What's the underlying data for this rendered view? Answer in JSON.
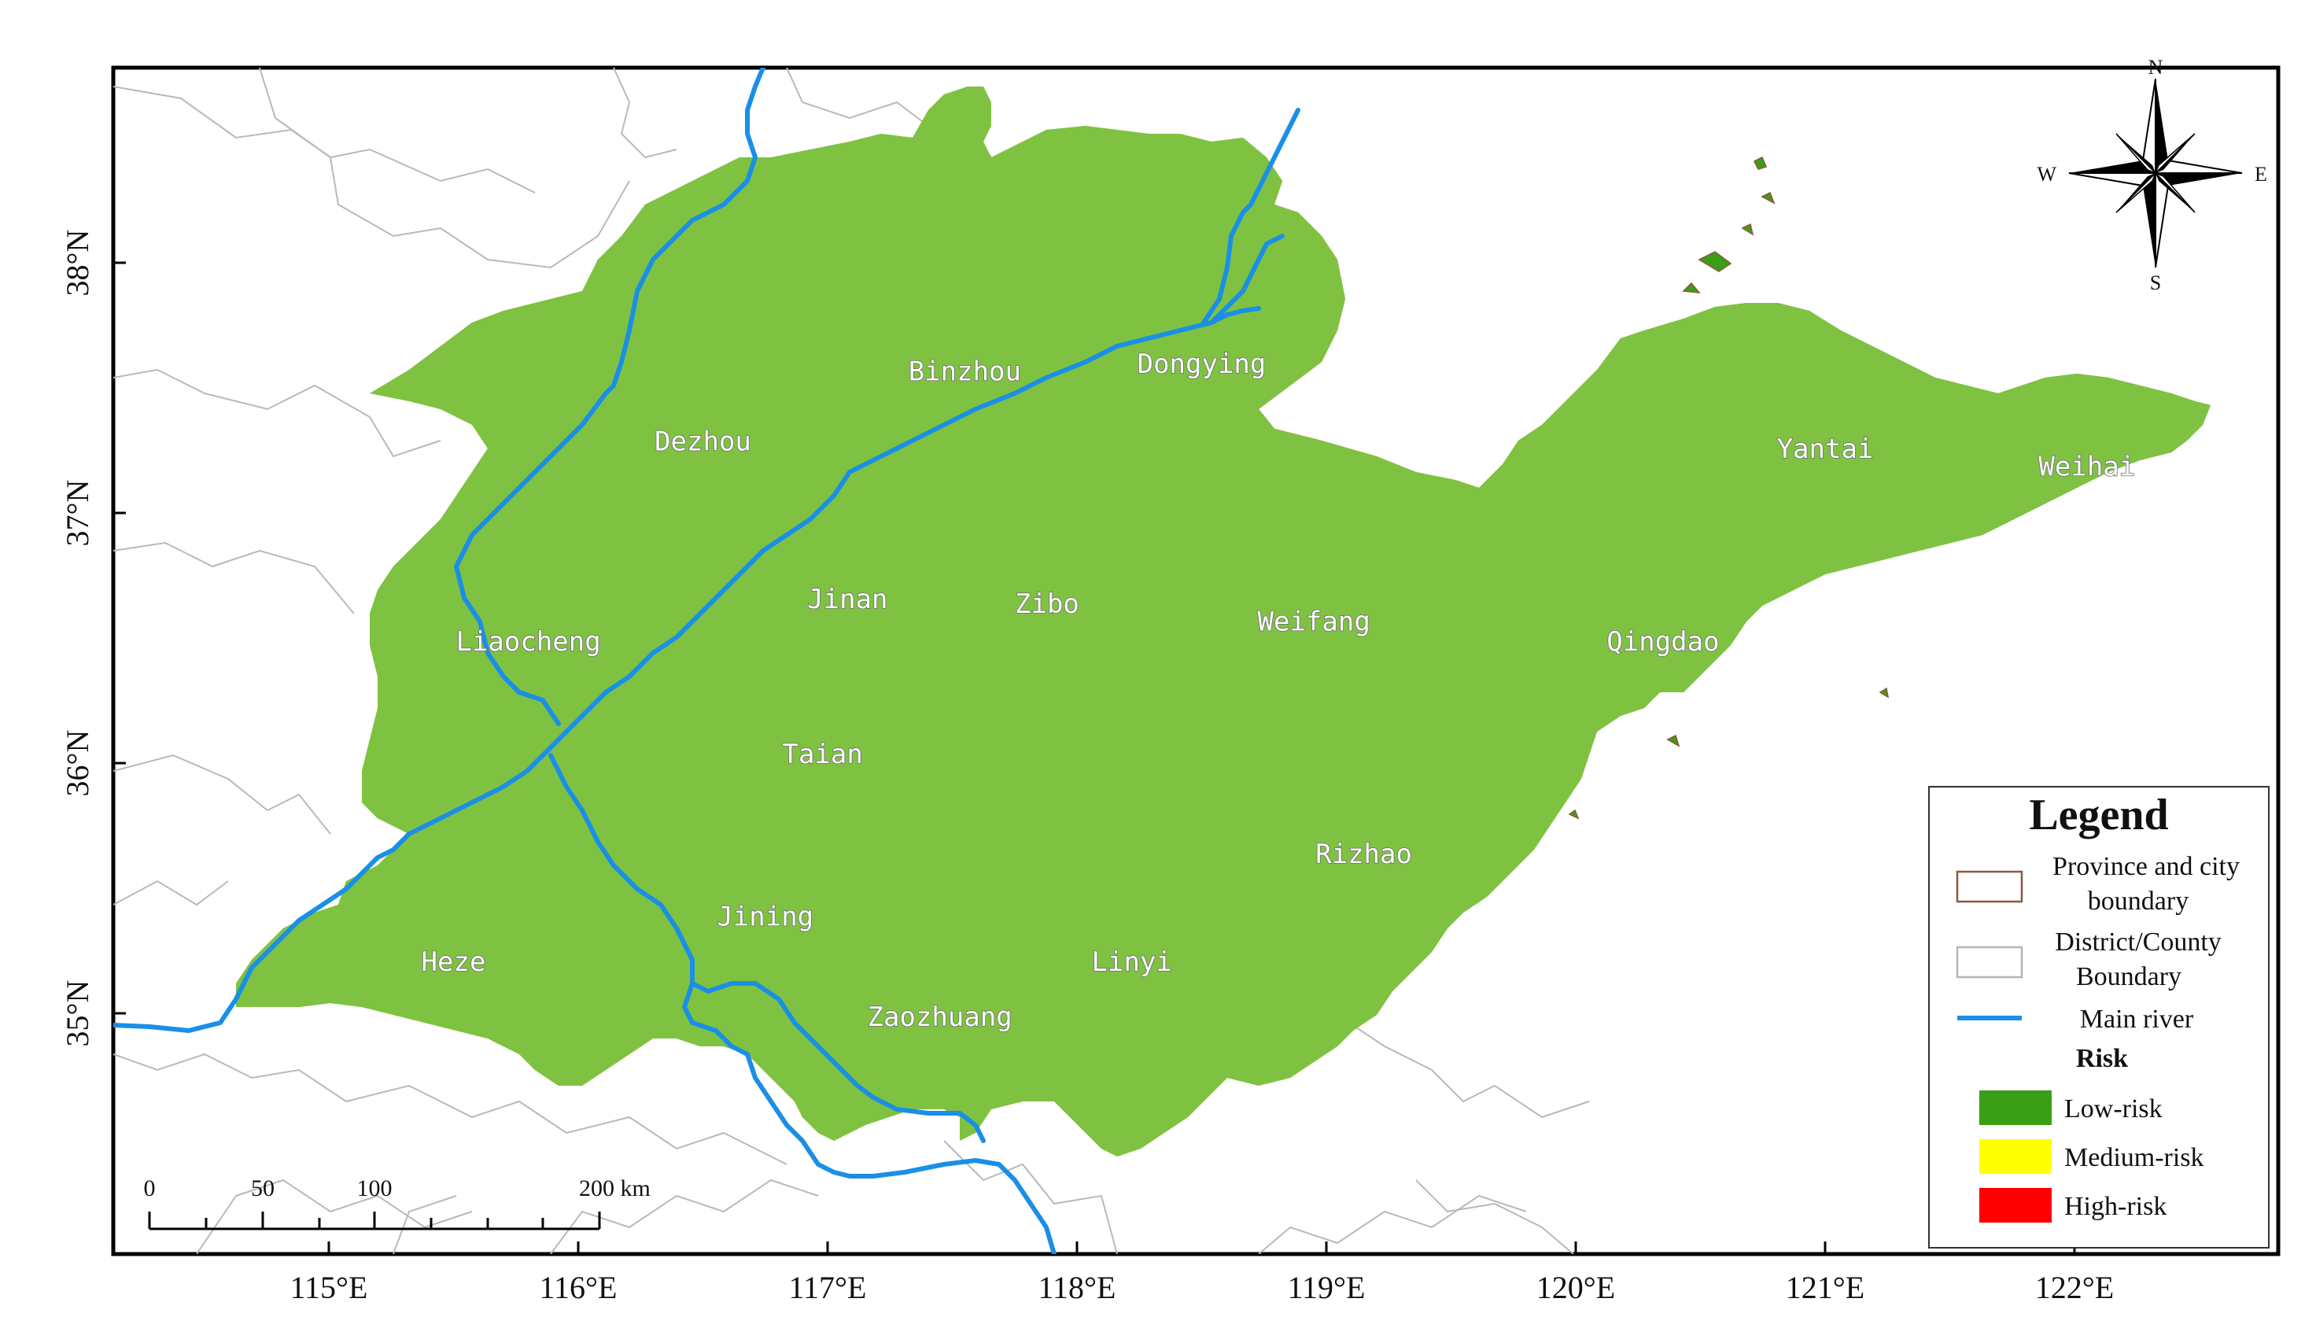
{
  "map": {
    "latitude_labels": [
      {
        "text": "38°N",
        "lat": 38
      },
      {
        "text": "37°N",
        "lat": 37
      },
      {
        "text": "36°N",
        "lat": 36
      },
      {
        "text": "35°N",
        "lat": 35
      }
    ],
    "longitude_labels": [
      {
        "text": "115°E",
        "lon": 115
      },
      {
        "text": "116°E",
        "lon": 116
      },
      {
        "text": "117°E",
        "lon": 117
      },
      {
        "text": "118°E",
        "lon": 118
      },
      {
        "text": "119°E",
        "lon": 119
      },
      {
        "text": "120°E",
        "lon": 120
      },
      {
        "text": "121°E",
        "lon": 121
      },
      {
        "text": "122°E",
        "lon": 122
      }
    ],
    "cities": [
      {
        "name": "Dezhou",
        "lon": 116.5,
        "lat": 37.25
      },
      {
        "name": "Binzhou",
        "lon": 117.55,
        "lat": 37.53
      },
      {
        "name": "Dongying",
        "lon": 118.5,
        "lat": 37.56
      },
      {
        "name": "Liaocheng",
        "lon": 115.8,
        "lat": 36.45
      },
      {
        "name": "Jinan",
        "lon": 117.08,
        "lat": 36.62
      },
      {
        "name": "Zibo",
        "lon": 117.88,
        "lat": 36.6
      },
      {
        "name": "Weifang",
        "lon": 118.95,
        "lat": 36.53
      },
      {
        "name": "Taian",
        "lon": 116.98,
        "lat": 36.0
      },
      {
        "name": "Qingdao",
        "lon": 120.35,
        "lat": 36.45
      },
      {
        "name": "Yantai",
        "lon": 121.0,
        "lat": 37.22
      },
      {
        "name": "Weihai",
        "lon": 122.05,
        "lat": 37.15
      },
      {
        "name": "Rizhao",
        "lon": 119.15,
        "lat": 35.6
      },
      {
        "name": "Jining",
        "lon": 116.75,
        "lat": 35.35
      },
      {
        "name": "Heze",
        "lon": 115.5,
        "lat": 35.17
      },
      {
        "name": "Linyi",
        "lon": 118.22,
        "lat": 35.17
      },
      {
        "name": "Zaozhuang",
        "lon": 117.45,
        "lat": 34.95
      }
    ],
    "colors": {
      "low_risk": "#3a9f16",
      "medium_risk": "#ffff00",
      "high_risk": "#ff0000",
      "province_boundary": "#8b5a3c",
      "county_boundary": "#b5b5b5",
      "river": "#1a8fe6"
    }
  },
  "compass": {
    "n": "N",
    "s": "S",
    "e": "E",
    "w": "W"
  },
  "scale_bar": {
    "ticks": [
      "0",
      "50",
      "100",
      "200 km"
    ]
  },
  "legend": {
    "title": "Legend",
    "items": [
      {
        "line1": "Province and city",
        "line2": "boundary"
      },
      {
        "line1": "District/County",
        "line2": "Boundary"
      },
      {
        "line1": "Main river"
      }
    ],
    "risk_title": "Risk",
    "risk_items": [
      "Low-risk",
      "Medium-risk",
      "High-risk"
    ]
  }
}
